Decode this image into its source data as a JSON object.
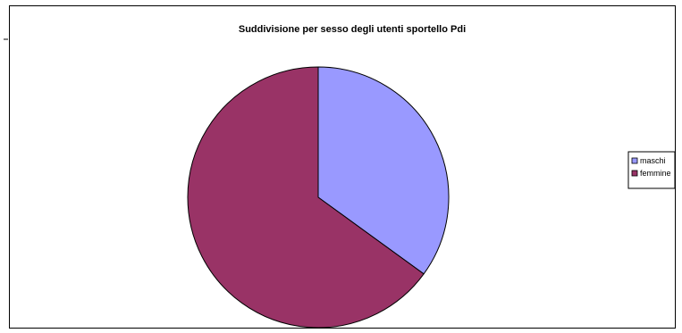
{
  "chart_data": {
    "type": "pie",
    "title": "Suddivisione per sesso degli utenti sportello Pdi",
    "categories": [
      "maschi",
      "femmine"
    ],
    "values": [
      35,
      65
    ],
    "colors": [
      "#9999FF",
      "#993366"
    ],
    "legend": "right",
    "start_angle_deg": 0,
    "direction": "clockwise"
  }
}
